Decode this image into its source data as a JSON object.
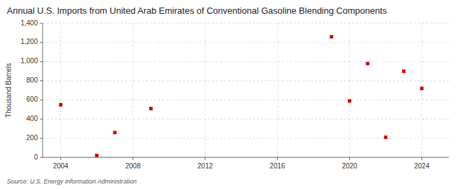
{
  "chart_data": {
    "type": "scatter",
    "title": "Annual U.S. Imports from United Arab Emirates of Conventional Gasoline Blending Components",
    "y_label": "Thousand Barrels",
    "annotations": [
      "Source: U.S. Energy Information Administration"
    ],
    "x": [
      2004,
      2006,
      2007,
      2009,
      2019,
      2020,
      2021,
      2022,
      2023,
      2024
    ],
    "values": [
      550,
      20,
      260,
      510,
      1260,
      590,
      980,
      210,
      900,
      720
    ],
    "color": "#cc0000",
    "marker": "square",
    "xlim": [
      2003.0,
      2025.5
    ],
    "ylim": [
      0,
      1400
    ],
    "xticks": [
      2004,
      2008,
      2012,
      2016,
      2020,
      2024
    ],
    "yticks": [
      0,
      200,
      400,
      600,
      800,
      {
        "value": 1000,
        "label": "1,000"
      },
      {
        "value": 1200,
        "label": "1,200"
      },
      {
        "value": 1400,
        "label": "1,400"
      }
    ],
    "grid": true
  }
}
